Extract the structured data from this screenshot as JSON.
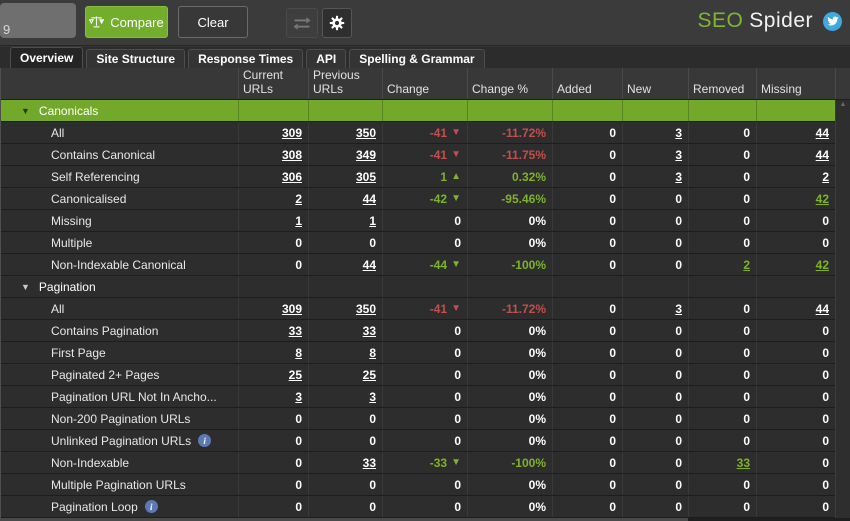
{
  "colors": {
    "brand_green": "#7cb82f",
    "section_highlight_green": "#73a92a",
    "negative_red": "#c14f4c",
    "positive_green": "#7db32d",
    "twitter_blue": "#3fa9e0",
    "info_blue": "#5d79b4"
  },
  "toolbar": {
    "fragment_text": "9",
    "compare_label": "Compare",
    "clear_label": "Clear",
    "icons": {
      "compare": "scales-icon",
      "swap": "swap-arrows-icon",
      "settings": "gear-icon",
      "social": "twitter-icon"
    },
    "logo": {
      "seo": "SEO",
      "spider": "Spider"
    }
  },
  "tabs": {
    "active": "Overview",
    "items": [
      "Overview",
      "Site Structure",
      "Response Times",
      "API",
      "Spelling & Grammar"
    ]
  },
  "table": {
    "columns": [
      {
        "key": "name",
        "label": ""
      },
      {
        "key": "current-urls",
        "label": "Current URLs"
      },
      {
        "key": "previous-urls",
        "label": "Previous URLs"
      },
      {
        "key": "change",
        "label": "Change"
      },
      {
        "key": "change-pct",
        "label": "Change %"
      },
      {
        "key": "added",
        "label": "Added"
      },
      {
        "key": "new",
        "label": "New"
      },
      {
        "key": "removed",
        "label": "Removed"
      },
      {
        "key": "missing",
        "label": "Missing"
      }
    ],
    "rows": [
      {
        "type": "section",
        "label": "Canonicals",
        "variant": "selected"
      },
      {
        "label": "All",
        "cells": [
          {
            "v": "309",
            "s": "link"
          },
          {
            "v": "350",
            "s": "link"
          },
          {
            "v": "-41",
            "s": "red",
            "arrow": "down"
          },
          {
            "v": "-11.72%",
            "s": "red"
          },
          {
            "v": "0",
            "s": "plain"
          },
          {
            "v": "3",
            "s": "link"
          },
          {
            "v": "0",
            "s": "plain"
          },
          {
            "v": "44",
            "s": "link"
          }
        ]
      },
      {
        "label": "Contains Canonical",
        "cells": [
          {
            "v": "308",
            "s": "link"
          },
          {
            "v": "349",
            "s": "link"
          },
          {
            "v": "-41",
            "s": "red",
            "arrow": "down"
          },
          {
            "v": "-11.75%",
            "s": "red"
          },
          {
            "v": "0",
            "s": "plain"
          },
          {
            "v": "3",
            "s": "link"
          },
          {
            "v": "0",
            "s": "plain"
          },
          {
            "v": "44",
            "s": "link"
          }
        ]
      },
      {
        "label": "Self Referencing",
        "cells": [
          {
            "v": "306",
            "s": "link"
          },
          {
            "v": "305",
            "s": "link"
          },
          {
            "v": "1",
            "s": "green",
            "arrow": "up"
          },
          {
            "v": "0.32%",
            "s": "green"
          },
          {
            "v": "0",
            "s": "plain"
          },
          {
            "v": "3",
            "s": "link"
          },
          {
            "v": "0",
            "s": "plain"
          },
          {
            "v": "2",
            "s": "link"
          }
        ]
      },
      {
        "label": "Canonicalised",
        "cells": [
          {
            "v": "2",
            "s": "link"
          },
          {
            "v": "44",
            "s": "link"
          },
          {
            "v": "-42",
            "s": "green",
            "arrow": "down"
          },
          {
            "v": "-95.46%",
            "s": "green"
          },
          {
            "v": "0",
            "s": "plain"
          },
          {
            "v": "0",
            "s": "plain"
          },
          {
            "v": "0",
            "s": "plain"
          },
          {
            "v": "42",
            "s": "green-link"
          }
        ]
      },
      {
        "label": "Missing",
        "cells": [
          {
            "v": "1",
            "s": "link"
          },
          {
            "v": "1",
            "s": "link"
          },
          {
            "v": "0",
            "s": "plain"
          },
          {
            "v": "0%",
            "s": "plain"
          },
          {
            "v": "0",
            "s": "plain"
          },
          {
            "v": "0",
            "s": "plain"
          },
          {
            "v": "0",
            "s": "plain"
          },
          {
            "v": "0",
            "s": "plain"
          }
        ]
      },
      {
        "label": "Multiple",
        "cells": [
          {
            "v": "0",
            "s": "plain"
          },
          {
            "v": "0",
            "s": "plain"
          },
          {
            "v": "0",
            "s": "plain"
          },
          {
            "v": "0%",
            "s": "plain"
          },
          {
            "v": "0",
            "s": "plain"
          },
          {
            "v": "0",
            "s": "plain"
          },
          {
            "v": "0",
            "s": "plain"
          },
          {
            "v": "0",
            "s": "plain"
          }
        ]
      },
      {
        "label": "Non-Indexable Canonical",
        "cells": [
          {
            "v": "0",
            "s": "plain"
          },
          {
            "v": "44",
            "s": "link"
          },
          {
            "v": "-44",
            "s": "green",
            "arrow": "down"
          },
          {
            "v": "-100%",
            "s": "green"
          },
          {
            "v": "0",
            "s": "plain"
          },
          {
            "v": "0",
            "s": "plain"
          },
          {
            "v": "2",
            "s": "green-link"
          },
          {
            "v": "42",
            "s": "green-link"
          }
        ]
      },
      {
        "type": "section",
        "label": "Pagination",
        "variant": "normal"
      },
      {
        "label": "All",
        "cells": [
          {
            "v": "309",
            "s": "link"
          },
          {
            "v": "350",
            "s": "link"
          },
          {
            "v": "-41",
            "s": "red",
            "arrow": "down"
          },
          {
            "v": "-11.72%",
            "s": "red"
          },
          {
            "v": "0",
            "s": "plain"
          },
          {
            "v": "3",
            "s": "link"
          },
          {
            "v": "0",
            "s": "plain"
          },
          {
            "v": "44",
            "s": "link"
          }
        ]
      },
      {
        "label": "Contains Pagination",
        "cells": [
          {
            "v": "33",
            "s": "link"
          },
          {
            "v": "33",
            "s": "link"
          },
          {
            "v": "0",
            "s": "plain"
          },
          {
            "v": "0%",
            "s": "plain"
          },
          {
            "v": "0",
            "s": "plain"
          },
          {
            "v": "0",
            "s": "plain"
          },
          {
            "v": "0",
            "s": "plain"
          },
          {
            "v": "0",
            "s": "plain"
          }
        ]
      },
      {
        "label": "First Page",
        "cells": [
          {
            "v": "8",
            "s": "link"
          },
          {
            "v": "8",
            "s": "link"
          },
          {
            "v": "0",
            "s": "plain"
          },
          {
            "v": "0%",
            "s": "plain"
          },
          {
            "v": "0",
            "s": "plain"
          },
          {
            "v": "0",
            "s": "plain"
          },
          {
            "v": "0",
            "s": "plain"
          },
          {
            "v": "0",
            "s": "plain"
          }
        ]
      },
      {
        "label": "Paginated 2+ Pages",
        "cells": [
          {
            "v": "25",
            "s": "link"
          },
          {
            "v": "25",
            "s": "link"
          },
          {
            "v": "0",
            "s": "plain"
          },
          {
            "v": "0%",
            "s": "plain"
          },
          {
            "v": "0",
            "s": "plain"
          },
          {
            "v": "0",
            "s": "plain"
          },
          {
            "v": "0",
            "s": "plain"
          },
          {
            "v": "0",
            "s": "plain"
          }
        ]
      },
      {
        "label": "Pagination URL Not In Ancho...",
        "cells": [
          {
            "v": "3",
            "s": "link"
          },
          {
            "v": "3",
            "s": "link"
          },
          {
            "v": "0",
            "s": "plain"
          },
          {
            "v": "0%",
            "s": "plain"
          },
          {
            "v": "0",
            "s": "plain"
          },
          {
            "v": "0",
            "s": "plain"
          },
          {
            "v": "0",
            "s": "plain"
          },
          {
            "v": "0",
            "s": "plain"
          }
        ]
      },
      {
        "label": "Non-200 Pagination URLs",
        "cells": [
          {
            "v": "0",
            "s": "plain"
          },
          {
            "v": "0",
            "s": "plain"
          },
          {
            "v": "0",
            "s": "plain"
          },
          {
            "v": "0%",
            "s": "plain"
          },
          {
            "v": "0",
            "s": "plain"
          },
          {
            "v": "0",
            "s": "plain"
          },
          {
            "v": "0",
            "s": "plain"
          },
          {
            "v": "0",
            "s": "plain"
          }
        ]
      },
      {
        "label": "Unlinked Pagination URLs",
        "info": true,
        "cells": [
          {
            "v": "0",
            "s": "plain"
          },
          {
            "v": "0",
            "s": "plain"
          },
          {
            "v": "0",
            "s": "plain"
          },
          {
            "v": "0%",
            "s": "plain"
          },
          {
            "v": "0",
            "s": "plain"
          },
          {
            "v": "0",
            "s": "plain"
          },
          {
            "v": "0",
            "s": "plain"
          },
          {
            "v": "0",
            "s": "plain"
          }
        ]
      },
      {
        "label": "Non-Indexable",
        "cells": [
          {
            "v": "0",
            "s": "plain"
          },
          {
            "v": "33",
            "s": "link"
          },
          {
            "v": "-33",
            "s": "green",
            "arrow": "down"
          },
          {
            "v": "-100%",
            "s": "green"
          },
          {
            "v": "0",
            "s": "plain"
          },
          {
            "v": "0",
            "s": "plain"
          },
          {
            "v": "33",
            "s": "green-link"
          },
          {
            "v": "0",
            "s": "plain"
          }
        ]
      },
      {
        "label": "Multiple Pagination URLs",
        "cells": [
          {
            "v": "0",
            "s": "plain"
          },
          {
            "v": "0",
            "s": "plain"
          },
          {
            "v": "0",
            "s": "plain"
          },
          {
            "v": "0%",
            "s": "plain"
          },
          {
            "v": "0",
            "s": "plain"
          },
          {
            "v": "0",
            "s": "plain"
          },
          {
            "v": "0",
            "s": "plain"
          },
          {
            "v": "0",
            "s": "plain"
          }
        ]
      },
      {
        "label": "Pagination Loop",
        "info": true,
        "cells": [
          {
            "v": "0",
            "s": "plain"
          },
          {
            "v": "0",
            "s": "plain"
          },
          {
            "v": "0",
            "s": "plain"
          },
          {
            "v": "0%",
            "s": "plain"
          },
          {
            "v": "0",
            "s": "plain"
          },
          {
            "v": "0",
            "s": "plain"
          },
          {
            "v": "0",
            "s": "plain"
          },
          {
            "v": "0",
            "s": "plain"
          }
        ]
      }
    ]
  }
}
